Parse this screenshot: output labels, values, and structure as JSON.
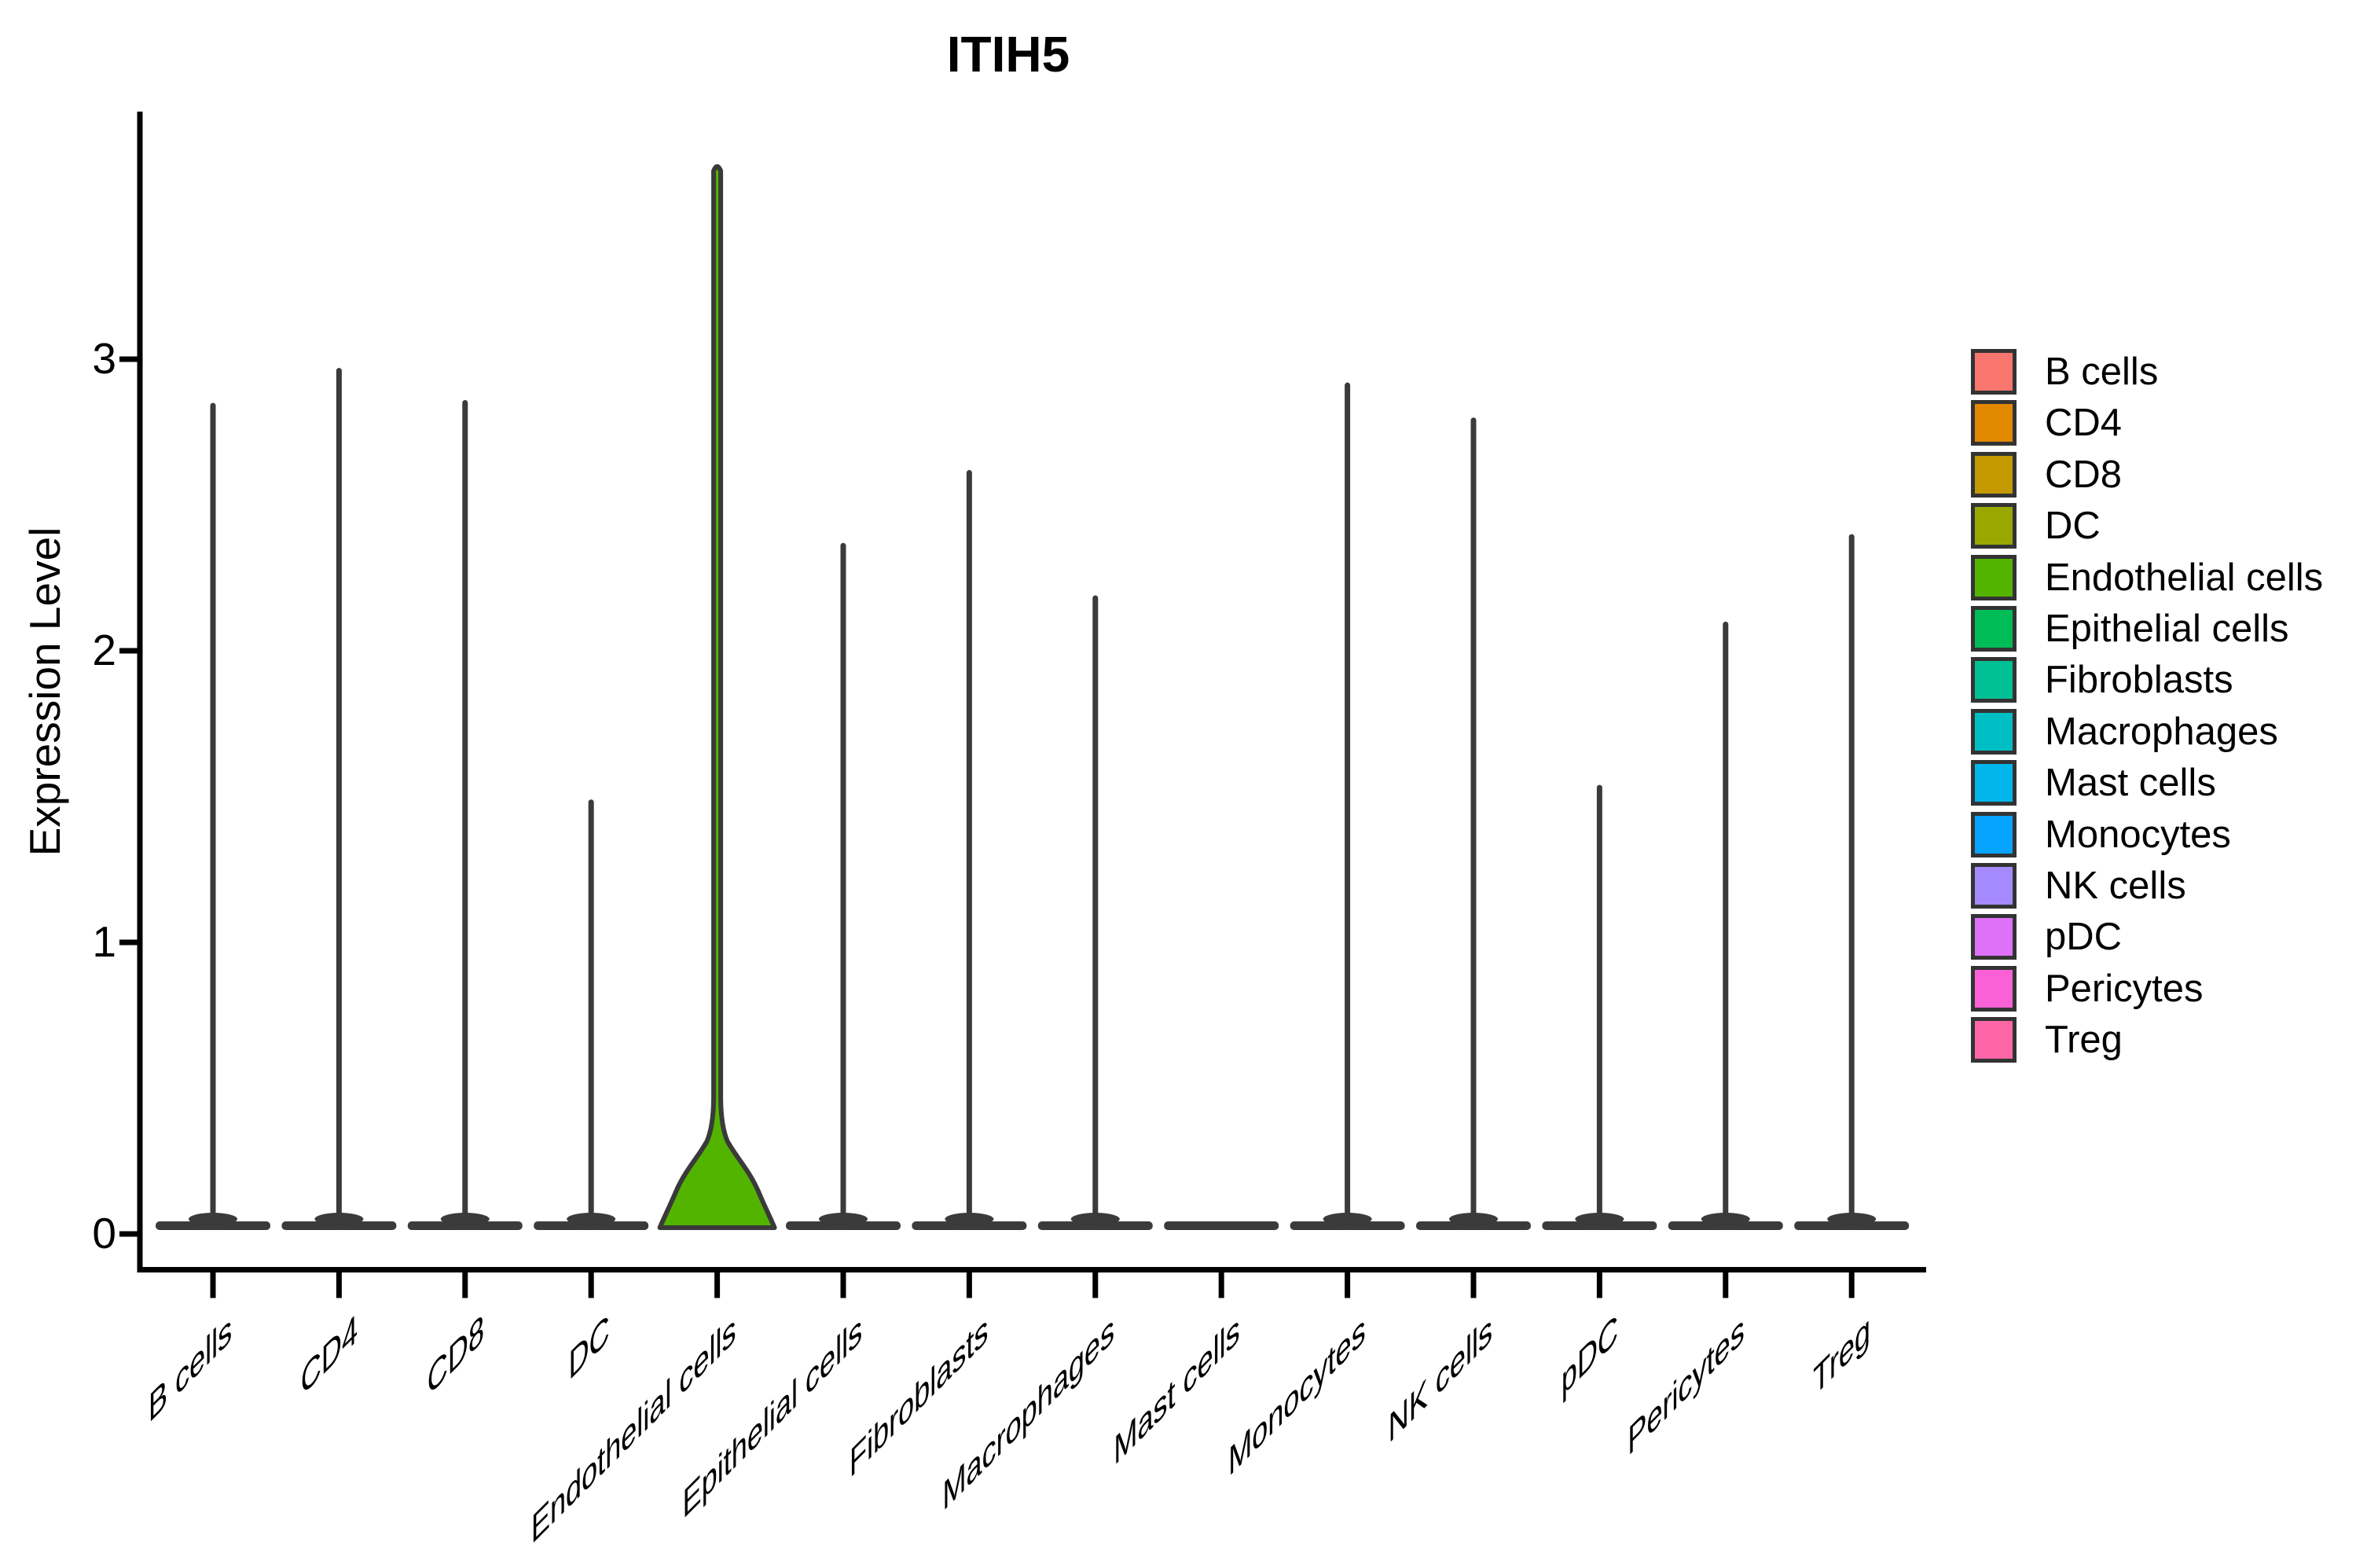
{
  "title": "ITIH5",
  "y_axis": {
    "label": "Expression Level",
    "ticks": [
      "0",
      "1",
      "2",
      "3"
    ]
  },
  "legend": {
    "items": [
      {
        "label": "B cells",
        "color": "#F8766D"
      },
      {
        "label": "CD4",
        "color": "#E38900"
      },
      {
        "label": "CD8",
        "color": "#C49A00"
      },
      {
        "label": "DC",
        "color": "#99A800"
      },
      {
        "label": "Endothelial cells",
        "color": "#53B400"
      },
      {
        "label": "Epithelial cells",
        "color": "#00BC56"
      },
      {
        "label": "Fibroblasts",
        "color": "#00C094"
      },
      {
        "label": "Macrophages",
        "color": "#00BFC4"
      },
      {
        "label": "Mast cells",
        "color": "#00B6EB"
      },
      {
        "label": "Monocytes",
        "color": "#06A4FF"
      },
      {
        "label": "NK cells",
        "color": "#A58AFF"
      },
      {
        "label": "pDC",
        "color": "#DF70F8"
      },
      {
        "label": "Pericytes",
        "color": "#FB61D7"
      },
      {
        "label": "Treg",
        "color": "#FF66A8"
      }
    ]
  },
  "chart_data": {
    "type": "violin",
    "title": "ITIH5",
    "xlabel": "",
    "ylabel": "Expression Level",
    "ylim": [
      0,
      3.85
    ],
    "yticks": [
      0,
      1,
      2,
      3
    ],
    "grid": false,
    "legend_position": "right",
    "categories": [
      "B cells",
      "CD4",
      "CD8",
      "DC",
      "Endothelial cells",
      "Epithelial cells",
      "Fibroblasts",
      "Macrophages",
      "Mast cells",
      "Monocytes",
      "NK cells",
      "pDC",
      "Pericytes",
      "Treg"
    ],
    "series": [
      {
        "name": "B cells",
        "color": "#F8766D",
        "shape": "spike",
        "max_expression": 2.85
      },
      {
        "name": "CD4",
        "color": "#E38900",
        "shape": "spike",
        "max_expression": 2.97
      },
      {
        "name": "CD8",
        "color": "#C49A00",
        "shape": "spike",
        "max_expression": 2.86
      },
      {
        "name": "DC",
        "color": "#99A800",
        "shape": "spike",
        "max_expression": 1.49
      },
      {
        "name": "Endothelial cells",
        "color": "#53B400",
        "shape": "violin",
        "max_expression": 3.67
      },
      {
        "name": "Epithelial cells",
        "color": "#00BC56",
        "shape": "spike",
        "max_expression": 2.37
      },
      {
        "name": "Fibroblasts",
        "color": "#00C094",
        "shape": "spike",
        "max_expression": 2.62
      },
      {
        "name": "Macrophages",
        "color": "#00BFC4",
        "shape": "spike",
        "max_expression": 2.19
      },
      {
        "name": "Mast cells",
        "color": "#00B6EB",
        "shape": "flat",
        "max_expression": 0
      },
      {
        "name": "Monocytes",
        "color": "#06A4FF",
        "shape": "spike",
        "max_expression": 2.92
      },
      {
        "name": "NK cells",
        "color": "#A58AFF",
        "shape": "spike",
        "max_expression": 2.8
      },
      {
        "name": "pDC",
        "color": "#DF70F8",
        "shape": "spike",
        "max_expression": 1.54
      },
      {
        "name": "Pericytes",
        "color": "#FB61D7",
        "shape": "spike",
        "max_expression": 2.1
      },
      {
        "name": "Treg",
        "color": "#FF66A8",
        "shape": "spike",
        "max_expression": 2.4
      }
    ],
    "note_visible_fill": "Only the Endothelial cells violin has visible width/fill; all other groups collapse to a flat dark base with a thin vertical tail; Mast cells has no tail."
  }
}
